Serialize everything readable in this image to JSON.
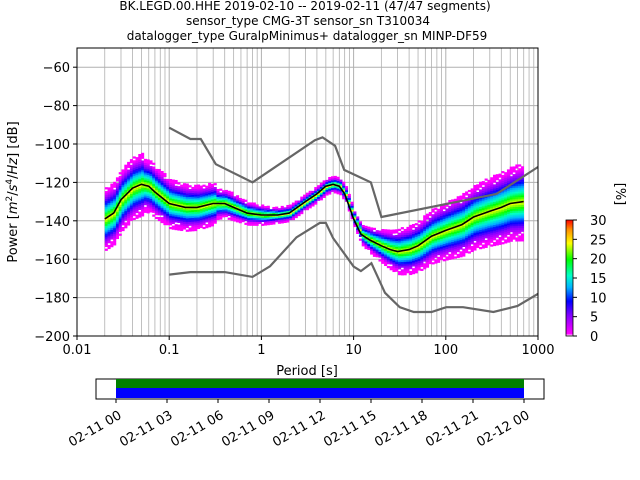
{
  "title_lines": [
    "BK.LEGD.00.HHE   2019-02-10 -- 2019-02-11  (47/47 segments)",
    "sensor_type CMG-3T sensor_sn T310034",
    "datalogger_type GuralpMinimus+ datalogger_sn MINP-DF59"
  ],
  "colors": {
    "mean_line": "#000000",
    "noise_model": "#666666",
    "grid": "#b0b0b0",
    "coverage_top": "#008000",
    "coverage_bottom": "#0000ff"
  },
  "chart_data": [
    {
      "type": "heatmap",
      "subtype": "probabilistic power spectral density",
      "xlabel": "Period [s]",
      "ylabel": "Power [m^2/s^4/Hz] [dB]",
      "x_scale": "log",
      "xlim": [
        0.01,
        1000
      ],
      "ylim": [
        -200,
        -50
      ],
      "x_ticks": [
        0.01,
        0.1,
        1,
        10,
        100,
        1000
      ],
      "x_tick_labels": [
        "0.01",
        "0.1",
        "1",
        "10",
        "100",
        "1000"
      ],
      "y_ticks": [
        -200,
        -180,
        -160,
        -140,
        -120,
        -100,
        -80,
        -60
      ],
      "y_tick_labels": [
        "−200",
        "−180",
        "−160",
        "−140",
        "−120",
        "−100",
        "−80",
        "−60"
      ],
      "grid": true,
      "colorbar": {
        "label": "[%]",
        "range": [
          0,
          30
        ],
        "ticks": [
          0,
          5,
          10,
          15,
          20,
          25,
          30
        ],
        "colormap": "pqlx"
      },
      "mean_curve": {
        "period": [
          0.02,
          0.025,
          0.03,
          0.04,
          0.05,
          0.06,
          0.07,
          0.1,
          0.15,
          0.2,
          0.3,
          0.4,
          0.5,
          0.7,
          1,
          1.5,
          2,
          3,
          4,
          5,
          6,
          7,
          8,
          10,
          12,
          15,
          20,
          25,
          30,
          40,
          50,
          70,
          100,
          150,
          200,
          300,
          400,
          500,
          700
        ],
        "power": [
          -139,
          -136,
          -129,
          -123,
          -121,
          -122,
          -125,
          -131,
          -133,
          -133,
          -131,
          -131,
          -133,
          -136,
          -137,
          -137,
          -136,
          -130,
          -126,
          -122,
          -121,
          -122,
          -126,
          -139,
          -147,
          -150,
          -153,
          -155,
          -156,
          -155,
          -153,
          -148,
          -145,
          -142,
          -138,
          -135,
          -133,
          -131,
          -130
        ]
      },
      "noise_models": [
        {
          "period": [
            0.1,
            0.17,
            0.22,
            0.32,
            0.8,
            3.8,
            4.6,
            6.3,
            7.9,
            15.4,
            20,
            354.8,
            1000
          ],
          "power": [
            -91.5,
            -97.4,
            -97.4,
            -110.5,
            -120,
            -98,
            -96.5,
            -101,
            -113.5,
            -120,
            -138,
            -126,
            -112
          ]
        },
        {
          "period": [
            0.1,
            0.17,
            0.4,
            0.8,
            1.24,
            2.4,
            4.3,
            5,
            6,
            10,
            12,
            15.6,
            21.9,
            31.6,
            45,
            70,
            101,
            154,
            328,
            600,
            1000
          ],
          "power": [
            -168,
            -166.7,
            -166.7,
            -169.2,
            -163.7,
            -148.6,
            -141.1,
            -141.1,
            -149,
            -163.8,
            -166.2,
            -162.1,
            -177.5,
            -185,
            -187.5,
            -187.5,
            -185,
            -185,
            -187.5,
            -184.4,
            -178
          ]
        }
      ]
    },
    {
      "type": "timeline",
      "subtype": "data coverage",
      "x_tick_labels": [
        "02-11 00",
        "02-11 03",
        "02-11 06",
        "02-11 09",
        "02-11 12",
        "02-11 15",
        "02-11 18",
        "02-11 21",
        "02-12 00"
      ],
      "segments": [
        {
          "start": "02-11 00",
          "end": "02-12 00",
          "color": "#008000",
          "row": "top"
        },
        {
          "start": "02-11 00",
          "end": "02-12 00",
          "color": "#0000ff",
          "row": "bottom"
        }
      ]
    }
  ]
}
